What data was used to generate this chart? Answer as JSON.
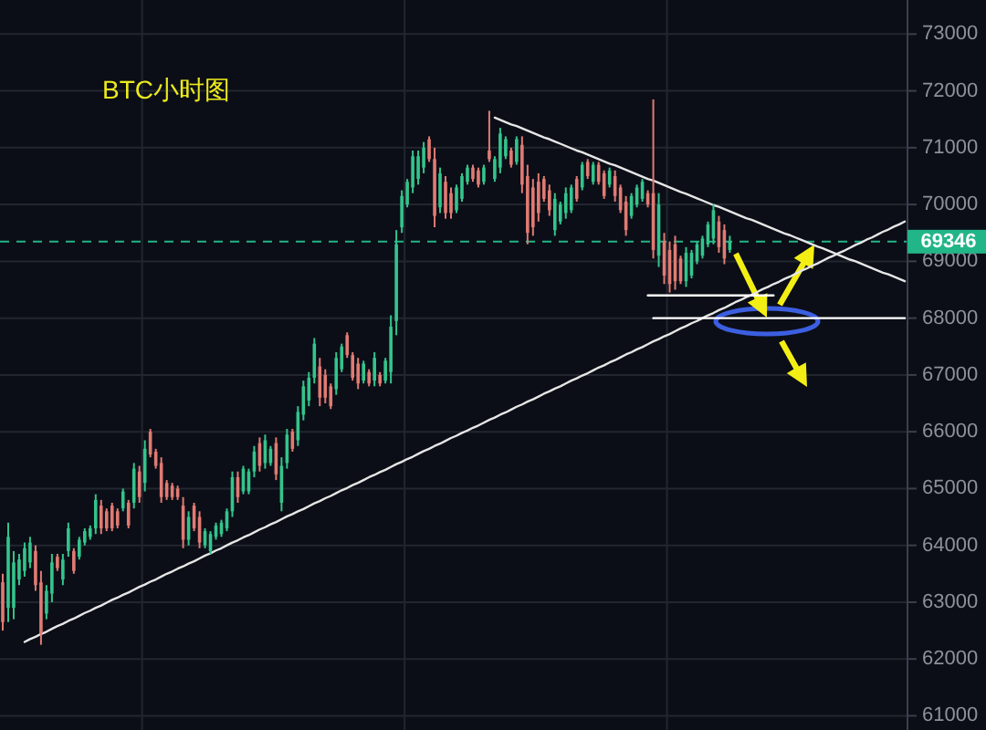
{
  "chart_data": {
    "type": "candlestick",
    "title": "BTC小时图",
    "categories": [
      null,
      null,
      null,
      null,
      null,
      null,
      null,
      null,
      null,
      null,
      null,
      null,
      null,
      null,
      null,
      null,
      null,
      null,
      null,
      null,
      null,
      null,
      null,
      null,
      null,
      null,
      null,
      null,
      null,
      null,
      null,
      null,
      null,
      null,
      null,
      null,
      null,
      null,
      null,
      null,
      null,
      null,
      null,
      null,
      null,
      null,
      null,
      null,
      null,
      null,
      null,
      null,
      null,
      null,
      null,
      null,
      null,
      null,
      null,
      null,
      null,
      null,
      null,
      null,
      null,
      null,
      null,
      null,
      null,
      null,
      null,
      null,
      null,
      null,
      null,
      null,
      null,
      null,
      null,
      null,
      null,
      null,
      null,
      null,
      null,
      null,
      null,
      null,
      null,
      null,
      null,
      null,
      null,
      null,
      null,
      null,
      null,
      null,
      null,
      null,
      null,
      null,
      null,
      null,
      null,
      null,
      null,
      null,
      null,
      null,
      null,
      null,
      null,
      null,
      null,
      null,
      null,
      null,
      null,
      null,
      null,
      null,
      null,
      null,
      null,
      null,
      null,
      null,
      null,
      null,
      null,
      null,
      null,
      null,
      null,
      null,
      null,
      null,
      null,
      null,
      null,
      null,
      null,
      null,
      null,
      null,
      null,
      null,
      null,
      null,
      null,
      null,
      null,
      null,
      null,
      null,
      null,
      null,
      null,
      null,
      null,
      null,
      null,
      null,
      null,
      null
    ],
    "ohlc": [
      [
        63350,
        63500,
        62500,
        62650
      ],
      [
        62900,
        64400,
        62650,
        64150
      ],
      [
        62900,
        63900,
        62700,
        63700
      ],
      [
        63400,
        63850,
        63300,
        63750
      ],
      [
        63550,
        64050,
        63450,
        63950
      ],
      [
        63700,
        64150,
        63600,
        64050
      ],
      [
        63900,
        64000,
        63200,
        63300
      ],
      [
        63350,
        63550,
        62250,
        62450
      ],
      [
        62800,
        63300,
        62700,
        63200
      ],
      [
        63150,
        63850,
        63000,
        63700
      ],
      [
        63800,
        63850,
        63550,
        63600
      ],
      [
        63400,
        63850,
        63300,
        63750
      ],
      [
        63900,
        64400,
        63800,
        64300
      ],
      [
        63900,
        63950,
        63500,
        63550
      ],
      [
        63800,
        64150,
        63750,
        64100
      ],
      [
        64050,
        64300,
        64000,
        64250
      ],
      [
        64150,
        64350,
        64100,
        64300
      ],
      [
        64300,
        64900,
        64200,
        64800
      ],
      [
        64700,
        64800,
        64200,
        64300
      ],
      [
        64600,
        64650,
        64250,
        64300
      ],
      [
        64700,
        64750,
        64250,
        64300
      ],
      [
        64600,
        64650,
        64300,
        64350
      ],
      [
        64650,
        65000,
        64600,
        64950
      ],
      [
        64750,
        64800,
        64300,
        64350
      ],
      [
        64750,
        65450,
        64650,
        65350
      ],
      [
        65300,
        65400,
        64750,
        64850
      ],
      [
        65100,
        65850,
        64950,
        65700
      ],
      [
        66000,
        66050,
        65550,
        65600
      ],
      [
        65650,
        65700,
        65350,
        65400
      ],
      [
        65450,
        65550,
        64750,
        64850
      ],
      [
        65100,
        65150,
        64800,
        64850
      ],
      [
        65050,
        65100,
        64800,
        64850
      ],
      [
        65000,
        65050,
        64800,
        64850
      ],
      [
        64700,
        64850,
        63950,
        64100
      ],
      [
        64100,
        64600,
        64000,
        64500
      ],
      [
        64700,
        64750,
        64250,
        64300
      ],
      [
        64500,
        64600,
        63950,
        64050
      ],
      [
        64000,
        64300,
        63950,
        64250
      ],
      [
        63900,
        64250,
        63850,
        64200
      ],
      [
        64150,
        64400,
        64100,
        64350
      ],
      [
        64200,
        64450,
        64150,
        64400
      ],
      [
        64300,
        64650,
        64250,
        64600
      ],
      [
        64600,
        65300,
        64500,
        65200
      ],
      [
        65200,
        65300,
        64750,
        64850
      ],
      [
        64950,
        65400,
        64900,
        65350
      ],
      [
        64950,
        65350,
        64900,
        65300
      ],
      [
        65300,
        65750,
        65200,
        65650
      ],
      [
        65800,
        65900,
        65300,
        65400
      ],
      [
        65450,
        65950,
        65350,
        65850
      ],
      [
        65450,
        65750,
        65400,
        65700
      ],
      [
        65800,
        65900,
        65150,
        65250
      ],
      [
        64750,
        65550,
        64600,
        65400
      ],
      [
        65450,
        66050,
        65350,
        65950
      ],
      [
        66000,
        66050,
        65650,
        65700
      ],
      [
        65850,
        66450,
        65750,
        66350
      ],
      [
        66300,
        66900,
        66200,
        66800
      ],
      [
        66550,
        67050,
        66450,
        66950
      ],
      [
        66950,
        67650,
        66850,
        67550
      ],
      [
        67150,
        67300,
        66450,
        66600
      ],
      [
        67000,
        67100,
        66500,
        66600
      ],
      [
        66800,
        66850,
        66400,
        66450
      ],
      [
        66750,
        67400,
        66650,
        67300
      ],
      [
        67100,
        67550,
        67050,
        67500
      ],
      [
        67700,
        67750,
        67300,
        67350
      ],
      [
        67350,
        67400,
        66900,
        66950
      ],
      [
        67200,
        67300,
        66750,
        66850
      ],
      [
        66900,
        67250,
        66850,
        67200
      ],
      [
        67050,
        67100,
        66800,
        66850
      ],
      [
        66900,
        67400,
        66800,
        67300
      ],
      [
        67000,
        67050,
        66800,
        66850
      ],
      [
        66900,
        67300,
        66850,
        67250
      ],
      [
        67050,
        68050,
        66850,
        67850
      ],
      [
        67950,
        69550,
        67700,
        69300
      ],
      [
        69600,
        70250,
        69500,
        70150
      ],
      [
        70000,
        70450,
        69950,
        70400
      ],
      [
        70300,
        70950,
        70200,
        70850
      ],
      [
        70450,
        70950,
        70350,
        70850
      ],
      [
        70650,
        71100,
        70550,
        71000
      ],
      [
        71150,
        71200,
        70750,
        70800
      ],
      [
        70800,
        71000,
        69600,
        69800
      ],
      [
        69950,
        70650,
        69850,
        70550
      ],
      [
        70400,
        70500,
        69750,
        69850
      ],
      [
        70200,
        70300,
        69750,
        69850
      ],
      [
        69900,
        70350,
        69850,
        70300
      ],
      [
        70100,
        70550,
        70050,
        70500
      ],
      [
        70400,
        70700,
        70350,
        70650
      ],
      [
        70650,
        70700,
        70400,
        70450
      ],
      [
        70600,
        70650,
        70300,
        70350
      ],
      [
        70400,
        70700,
        70350,
        70650
      ],
      [
        70950,
        71650,
        70750,
        70800
      ],
      [
        70450,
        70850,
        70400,
        70800
      ],
      [
        70650,
        71350,
        70550,
        71250
      ],
      [
        70850,
        71200,
        70800,
        71150
      ],
      [
        70950,
        71000,
        70650,
        70700
      ],
      [
        70750,
        71200,
        70700,
        71150
      ],
      [
        71050,
        71200,
        70200,
        70350
      ],
      [
        70500,
        70700,
        69300,
        69500
      ],
      [
        70300,
        70450,
        69450,
        69600
      ],
      [
        70400,
        70550,
        69700,
        69850
      ],
      [
        70450,
        70500,
        70050,
        70100
      ],
      [
        70250,
        70350,
        69800,
        69900
      ],
      [
        69550,
        70200,
        69450,
        70100
      ],
      [
        69700,
        70050,
        69650,
        70000
      ],
      [
        69850,
        70300,
        69750,
        70200
      ],
      [
        69900,
        70350,
        69850,
        70300
      ],
      [
        70450,
        70500,
        70050,
        70100
      ],
      [
        70300,
        70750,
        70250,
        70700
      ],
      [
        70750,
        70800,
        70450,
        70500
      ],
      [
        70400,
        70750,
        70350,
        70700
      ],
      [
        70700,
        70750,
        70350,
        70400
      ],
      [
        70550,
        70600,
        70100,
        70150
      ],
      [
        70350,
        70650,
        70300,
        70600
      ],
      [
        70500,
        70600,
        70050,
        70150
      ],
      [
        70300,
        70350,
        69850,
        69900
      ],
      [
        70050,
        70150,
        69450,
        69550
      ],
      [
        69800,
        70200,
        69750,
        70150
      ],
      [
        70000,
        70350,
        69950,
        70300
      ],
      [
        70100,
        70450,
        70050,
        70400
      ],
      [
        70200,
        70250,
        69950,
        70000
      ],
      [
        70200,
        71850,
        69050,
        69200
      ],
      [
        69100,
        70200,
        68900,
        70000
      ],
      [
        69350,
        69500,
        68600,
        68750
      ],
      [
        69200,
        69350,
        68450,
        68600
      ],
      [
        69300,
        69450,
        68500,
        68650
      ],
      [
        69050,
        69100,
        68600,
        68650
      ],
      [
        68650,
        69250,
        68550,
        69150
      ],
      [
        68750,
        69200,
        68700,
        69150
      ],
      [
        69000,
        69350,
        68950,
        69300
      ],
      [
        69100,
        69450,
        69050,
        69400
      ],
      [
        69300,
        69700,
        69250,
        69650
      ],
      [
        69400,
        70000,
        69300,
        69900
      ],
      [
        69700,
        69800,
        69150,
        69250
      ],
      [
        69550,
        69650,
        68950,
        69050
      ],
      [
        69200,
        69450,
        69150,
        69350
      ],
      null,
      null,
      null,
      null,
      null,
      null,
      null,
      null,
      null,
      null,
      null,
      null,
      null,
      null,
      null,
      null,
      null,
      null,
      null,
      null,
      null,
      null,
      null,
      null,
      null,
      null,
      null,
      null,
      null,
      null,
      null,
      null
    ],
    "colors": [
      "#e07b73",
      "#34c48c",
      "#34c48c",
      "#34c48c",
      "#34c48c",
      "#34c48c",
      "#e07b73",
      "#e07b73",
      "#34c48c",
      "#34c48c",
      "#e07b73",
      "#34c48c",
      "#34c48c",
      "#e07b73",
      "#34c48c",
      "#34c48c",
      "#34c48c",
      "#34c48c",
      "#e07b73",
      "#e07b73",
      "#e07b73",
      "#e07b73",
      "#34c48c",
      "#e07b73",
      "#34c48c",
      "#e07b73",
      "#34c48c",
      "#e07b73",
      "#e07b73",
      "#e07b73",
      "#e07b73",
      "#e07b73",
      "#e07b73",
      "#e07b73",
      "#34c48c",
      "#e07b73",
      "#e07b73",
      "#34c48c",
      "#34c48c",
      "#34c48c",
      "#34c48c",
      "#34c48c",
      "#34c48c",
      "#e07b73",
      "#34c48c",
      "#34c48c",
      "#34c48c",
      "#e07b73",
      "#34c48c",
      "#34c48c",
      "#e07b73",
      "#34c48c",
      "#34c48c",
      "#e07b73",
      "#34c48c",
      "#34c48c",
      "#34c48c",
      "#34c48c",
      "#e07b73",
      "#e07b73",
      "#e07b73",
      "#34c48c",
      "#34c48c",
      "#e07b73",
      "#e07b73",
      "#e07b73",
      "#34c48c",
      "#e07b73",
      "#34c48c",
      "#e07b73",
      "#34c48c",
      "#34c48c",
      "#34c48c",
      "#34c48c",
      "#34c48c",
      "#34c48c",
      "#34c48c",
      "#34c48c",
      "#e07b73",
      "#e07b73",
      "#34c48c",
      "#e07b73",
      "#e07b73",
      "#34c48c",
      "#34c48c",
      "#34c48c",
      "#e07b73",
      "#e07b73",
      "#34c48c",
      "#e07b73",
      "#34c48c",
      "#34c48c",
      "#34c48c",
      "#e07b73",
      "#34c48c",
      "#e07b73",
      "#e07b73",
      "#e07b73",
      "#e07b73",
      "#e07b73",
      "#e07b73",
      "#34c48c",
      "#34c48c",
      "#34c48c",
      "#34c48c",
      "#e07b73",
      "#34c48c",
      "#e07b73",
      "#34c48c",
      "#e07b73",
      "#e07b73",
      "#34c48c",
      "#e07b73",
      "#e07b73",
      "#e07b73",
      "#34c48c",
      "#34c48c",
      "#34c48c",
      "#e07b73",
      "#e07b73",
      "#34c48c",
      "#e07b73",
      "#e07b73",
      "#e07b73",
      "#e07b73",
      "#34c48c",
      "#34c48c",
      "#34c48c",
      "#34c48c",
      "#34c48c",
      "#34c48c",
      "#e07b73",
      "#e07b73",
      "#34c48c",
      null,
      null,
      null,
      null,
      null,
      null,
      null,
      null,
      null,
      null,
      null,
      null,
      null,
      null,
      null,
      null,
      null,
      null,
      null,
      null,
      null,
      null,
      null,
      null,
      null,
      null,
      null,
      null,
      null,
      null,
      null,
      null
    ],
    "series": [
      {
        "type": "line",
        "color": "#e6e6e6",
        "values": [
          null,
          null,
          null,
          null,
          62300,
          62350,
          62390,
          62440,
          62480,
          62530,
          62580,
          62620,
          62670,
          62710,
          62760,
          62810,
          62850,
          62900,
          62940,
          62990,
          63040,
          63080,
          63130,
          63170,
          63220,
          63270,
          63310,
          63360,
          63400,
          63450,
          63500,
          63540,
          63590,
          63630,
          63680,
          63720,
          63770,
          63820,
          63860,
          63910,
          63950,
          64000,
          64050,
          64090,
          64140,
          64180,
          64230,
          64280,
          64320,
          64370,
          64410,
          64460,
          64510,
          64550,
          64600,
          64640,
          64690,
          64740,
          64780,
          64830,
          64870,
          64920,
          64970,
          65010,
          65060,
          65100,
          65150,
          65200,
          65240,
          65290,
          65330,
          65380,
          65430,
          65470,
          65520,
          65560,
          65610,
          65660,
          65700,
          65750,
          65790,
          65840,
          65890,
          65930,
          65980,
          66020,
          66070,
          66110,
          66160,
          66210,
          66250,
          66300,
          66340,
          66390,
          66440,
          66480,
          66530,
          66570,
          66620,
          66670,
          66710,
          66760,
          66800,
          66850,
          66900,
          66940,
          66990,
          67030,
          67080,
          67130,
          67170,
          67220,
          67260,
          67310,
          67360,
          67400,
          67450,
          67490,
          67540,
          67590,
          67630,
          67680,
          67720,
          67770,
          67820,
          67860,
          67910,
          67950,
          68000,
          68050,
          68090,
          68140,
          68180,
          68230,
          68280,
          68320,
          68370,
          68410,
          68460,
          68510,
          68550,
          68600,
          68640,
          68690,
          68730,
          68780,
          68830,
          68870,
          68920,
          68960,
          69010,
          69060,
          69100,
          69150,
          69190,
          69240,
          69290,
          69330,
          69380,
          69420,
          69470,
          69520,
          69560,
          69610,
          69650,
          69700
        ]
      },
      {
        "type": "line",
        "color": "#e6e6e6",
        "values": [
          null,
          null,
          null,
          null,
          null,
          null,
          null,
          null,
          null,
          null,
          null,
          null,
          null,
          null,
          null,
          null,
          null,
          null,
          null,
          null,
          null,
          null,
          null,
          null,
          null,
          null,
          null,
          null,
          null,
          null,
          null,
          null,
          null,
          null,
          null,
          null,
          null,
          null,
          null,
          null,
          null,
          null,
          null,
          null,
          null,
          null,
          null,
          null,
          null,
          null,
          null,
          null,
          null,
          null,
          null,
          null,
          null,
          null,
          null,
          null,
          null,
          null,
          null,
          null,
          null,
          null,
          null,
          null,
          null,
          null,
          null,
          null,
          null,
          null,
          null,
          null,
          null,
          null,
          null,
          null,
          null,
          null,
          null,
          null,
          null,
          null,
          null,
          null,
          null,
          null,
          71530,
          71490,
          71450,
          71410,
          71380,
          71340,
          71300,
          71260,
          71220,
          71180,
          71150,
          71110,
          71070,
          71030,
          70990,
          70950,
          70920,
          70880,
          70840,
          70800,
          70760,
          70720,
          70690,
          70650,
          70610,
          70570,
          70530,
          70490,
          70450,
          70420,
          70380,
          70340,
          70300,
          70260,
          70220,
          70190,
          70150,
          70110,
          70070,
          70030,
          69990,
          69960,
          69920,
          69880,
          69840,
          69800,
          69760,
          69730,
          69690,
          69650,
          69610,
          69570,
          69530,
          69490,
          69460,
          69420,
          69380,
          69340,
          69300,
          69260,
          69230,
          69190,
          69150,
          69110,
          69070,
          69030,
          69000,
          68960,
          68920,
          68880,
          68840,
          68800,
          68770,
          68730,
          68690,
          68650
        ]
      },
      {
        "type": "line",
        "color": "#ffffff",
        "values": [
          null,
          null,
          null,
          null,
          null,
          null,
          null,
          null,
          null,
          null,
          null,
          null,
          null,
          null,
          null,
          null,
          null,
          null,
          null,
          null,
          null,
          null,
          null,
          null,
          null,
          null,
          null,
          null,
          null,
          null,
          null,
          null,
          null,
          null,
          null,
          null,
          null,
          null,
          null,
          null,
          null,
          null,
          null,
          null,
          null,
          null,
          null,
          null,
          null,
          null,
          null,
          null,
          null,
          null,
          null,
          null,
          null,
          null,
          null,
          null,
          null,
          null,
          null,
          null,
          null,
          null,
          null,
          null,
          null,
          null,
          null,
          null,
          null,
          null,
          null,
          null,
          null,
          null,
          null,
          null,
          null,
          null,
          null,
          null,
          null,
          null,
          null,
          null,
          null,
          null,
          null,
          null,
          null,
          null,
          null,
          null,
          null,
          null,
          null,
          null,
          null,
          null,
          null,
          null,
          null,
          null,
          null,
          null,
          null,
          null,
          null,
          null,
          null,
          null,
          null,
          null,
          null,
          null,
          68400,
          68400,
          68400,
          68400,
          68400,
          68400,
          68400,
          68400,
          68400,
          68400,
          68400,
          68400,
          68400,
          68400,
          68400,
          68400,
          68400,
          68400,
          68400,
          68400,
          68400,
          68400,
          68400,
          68400,
          null,
          null,
          null,
          null,
          null,
          null,
          null,
          null,
          null,
          null,
          null,
          null,
          null,
          null,
          null,
          null,
          null,
          null,
          null,
          null,
          null,
          null,
          null,
          null
        ]
      },
      {
        "type": "line",
        "color": "#ffffff",
        "values": [
          null,
          null,
          null,
          null,
          null,
          null,
          null,
          null,
          null,
          null,
          null,
          null,
          null,
          null,
          null,
          null,
          null,
          null,
          null,
          null,
          null,
          null,
          null,
          null,
          null,
          null,
          null,
          null,
          null,
          null,
          null,
          null,
          null,
          null,
          null,
          null,
          null,
          null,
          null,
          null,
          null,
          null,
          null,
          null,
          null,
          null,
          null,
          null,
          null,
          null,
          null,
          null,
          null,
          null,
          null,
          null,
          null,
          null,
          null,
          null,
          null,
          null,
          null,
          null,
          null,
          null,
          null,
          null,
          null,
          null,
          null,
          null,
          null,
          null,
          null,
          null,
          null,
          null,
          null,
          null,
          null,
          null,
          null,
          null,
          null,
          null,
          null,
          null,
          null,
          null,
          null,
          null,
          null,
          null,
          null,
          null,
          null,
          null,
          null,
          null,
          null,
          null,
          null,
          null,
          null,
          null,
          null,
          null,
          null,
          null,
          null,
          null,
          null,
          null,
          null,
          null,
          null,
          null,
          null,
          68000,
          68000,
          68000,
          68000,
          68000,
          68000,
          68000,
          68000,
          68000,
          68000,
          68000,
          68000,
          68000,
          68000,
          68000,
          68000,
          68000,
          68000,
          68000,
          68000,
          68000,
          68000,
          68000,
          68000,
          68000,
          68000,
          68000,
          68000,
          68000,
          68000,
          68000,
          68000,
          68000,
          68000,
          68000,
          68000,
          68000,
          68000,
          68000,
          68000,
          68000,
          68000,
          68000,
          68000,
          68000,
          68000,
          68000
        ]
      }
    ],
    "ylim": [
      60750,
      73600
    ],
    "yticks": [
      61000,
      62000,
      63000,
      64000,
      65000,
      66000,
      67000,
      68000,
      69000,
      70000,
      71000,
      72000,
      73000
    ],
    "grid": true,
    "tick_labels": "y",
    "ref_lines": [
      {
        "axis": "y",
        "value": 69346,
        "label": "69346",
        "color": "#22b587",
        "line_style": "dashed"
      }
    ]
  }
}
